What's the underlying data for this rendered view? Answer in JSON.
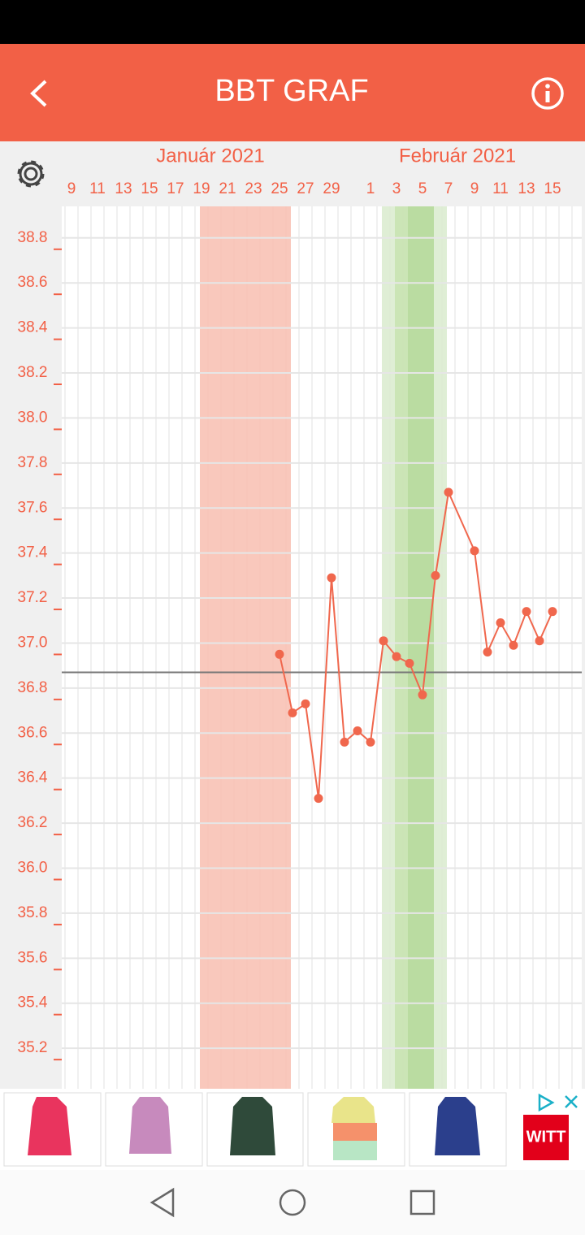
{
  "header": {
    "title": "BBT GRAF"
  },
  "chart_data": {
    "type": "line",
    "months": [
      {
        "label": "Január 2021",
        "at": "2021-01-19"
      },
      {
        "label": "Február 2021",
        "at": "2021-02-07"
      }
    ],
    "x": [
      "2021-01-25",
      "2021-01-26",
      "2021-01-27",
      "2021-01-28",
      "2021-01-29",
      "2021-01-30",
      "2021-01-31",
      "2021-02-01",
      "2021-02-02",
      "2021-02-03",
      "2021-02-04",
      "2021-02-05",
      "2021-02-06",
      "2021-02-07",
      "2021-02-09",
      "2021-02-10",
      "2021-02-11",
      "2021-02-12",
      "2021-02-13",
      "2021-02-14",
      "2021-02-15"
    ],
    "series": [
      {
        "color": "#f0674d",
        "values": [
          36.95,
          36.69,
          36.73,
          36.31,
          37.29,
          36.56,
          36.61,
          36.56,
          37.01,
          36.94,
          36.91,
          36.77,
          37.3,
          37.67,
          37.41,
          36.96,
          37.09,
          36.99,
          37.14,
          37.01,
          37.14
        ]
      }
    ],
    "xlim": [
      "2021-01-08",
      "2021-02-17"
    ],
    "xticks": [
      {
        "value": "2021-01-09",
        "label": "9"
      },
      {
        "value": "2021-01-11",
        "label": "11"
      },
      {
        "value": "2021-01-13",
        "label": "13"
      },
      {
        "value": "2021-01-15",
        "label": "15"
      },
      {
        "value": "2021-01-17",
        "label": "17"
      },
      {
        "value": "2021-01-19",
        "label": "19"
      },
      {
        "value": "2021-01-21",
        "label": "21"
      },
      {
        "value": "2021-01-23",
        "label": "23"
      },
      {
        "value": "2021-01-25",
        "label": "25"
      },
      {
        "value": "2021-01-27",
        "label": "27"
      },
      {
        "value": "2021-01-29",
        "label": "29"
      },
      {
        "value": "2021-02-01",
        "label": "1"
      },
      {
        "value": "2021-02-03",
        "label": "3"
      },
      {
        "value": "2021-02-05",
        "label": "5"
      },
      {
        "value": "2021-02-07",
        "label": "7"
      },
      {
        "value": "2021-02-09",
        "label": "9"
      },
      {
        "value": "2021-02-11",
        "label": "11"
      },
      {
        "value": "2021-02-13",
        "label": "13"
      },
      {
        "value": "2021-02-15",
        "label": "15"
      }
    ],
    "ylim": [
      35.02,
      38.94
    ],
    "yticks": [
      {
        "value": 35.2,
        "label": "35.2"
      },
      {
        "value": 35.4,
        "label": "35.4"
      },
      {
        "value": 35.6,
        "label": "35.6"
      },
      {
        "value": 35.8,
        "label": "35.8"
      },
      {
        "value": 36.0,
        "label": "36.0"
      },
      {
        "value": 36.2,
        "label": "36.2"
      },
      {
        "value": 36.4,
        "label": "36.4"
      },
      {
        "value": 36.6,
        "label": "36.6"
      },
      {
        "value": 36.8,
        "label": "36.8"
      },
      {
        "value": 37.0,
        "label": "37.0"
      },
      {
        "value": 37.2,
        "label": "37.2"
      },
      {
        "value": 37.4,
        "label": "37.4"
      },
      {
        "value": 37.6,
        "label": "37.6"
      },
      {
        "value": 37.8,
        "label": "37.8"
      },
      {
        "value": 38.0,
        "label": "38.0"
      },
      {
        "value": 38.2,
        "label": "38.2"
      },
      {
        "value": 38.4,
        "label": "38.4"
      },
      {
        "value": 38.6,
        "label": "38.6"
      },
      {
        "value": 38.8,
        "label": "38.8"
      }
    ],
    "cover_line": 36.87,
    "bands": [
      {
        "start": "2021-01-19",
        "end": "2021-01-25",
        "color": "#f8c2b5"
      },
      {
        "start": "2021-02-02",
        "end": "2021-02-06",
        "color": "#dcecd0"
      },
      {
        "start": "2021-02-03",
        "end": "2021-02-03",
        "color": "#c9e3b3"
      },
      {
        "start": "2021-02-04",
        "end": "2021-02-05",
        "color": "#b6d99b"
      }
    ],
    "grid": true
  },
  "ad": {
    "brand": "WITT"
  }
}
